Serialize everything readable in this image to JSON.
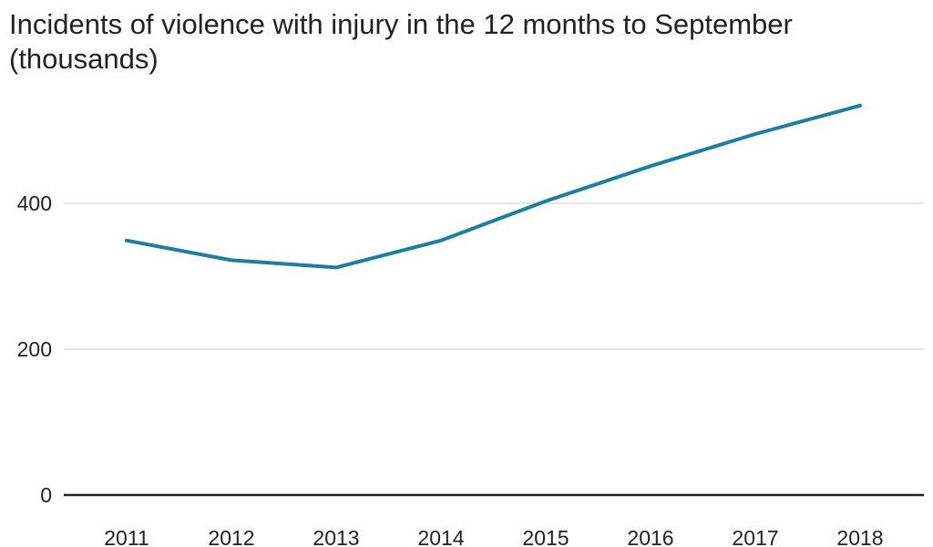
{
  "chart_data": {
    "type": "line",
    "title": "Incidents of violence with injury in the 12 months to September (thousands)",
    "xlabel": "",
    "ylabel": "",
    "x": [
      "2011",
      "2012",
      "2013",
      "2014",
      "2015",
      "2016",
      "2017",
      "2018"
    ],
    "series": [
      {
        "values": [
          349,
          322,
          312,
          349,
          403,
          451,
          495,
          534
        ]
      }
    ],
    "ylim": [
      0,
      540
    ],
    "yticks": [
      0,
      200,
      400
    ],
    "grid": "horizontal",
    "legend": "none",
    "colors": {
      "line": "#1a7fa0",
      "grid": "#cccccc",
      "baseline": "#222222",
      "text": "#222222"
    }
  }
}
